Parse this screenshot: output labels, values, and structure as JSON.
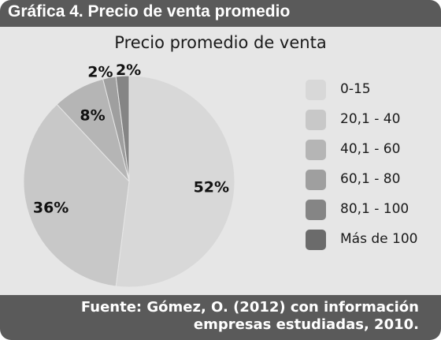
{
  "header": {
    "title": "Gráfica 4. Precio de venta promedio"
  },
  "footer": {
    "line1": "Fuente: Gómez, O. (2012) con información",
    "line2": "empresas estudiadas, 2010."
  },
  "chart_data": {
    "type": "pie",
    "title": "Precio promedio de venta",
    "categories": [
      "0-15",
      "20,1 - 40",
      "40,1 - 60",
      "60,1 - 80",
      "80,1 - 100",
      "Más de 100"
    ],
    "values": [
      52,
      36,
      8,
      2,
      2,
      0
    ],
    "data_labels": [
      "52%",
      "36%",
      "8%",
      "2%",
      "2%",
      ""
    ],
    "colors": [
      "#d8d8d8",
      "#c8c8c8",
      "#b5b5b5",
      "#9f9f9f",
      "#858585",
      "#6b6b6b"
    ],
    "legend_position": "right"
  }
}
